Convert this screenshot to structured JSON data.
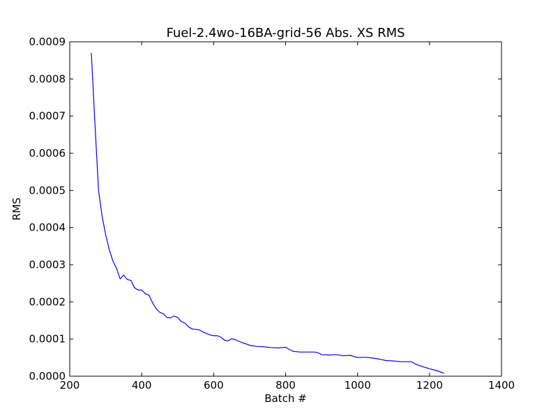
{
  "chart_data": {
    "type": "line",
    "title": "Fuel-2.4wo-16BA-grid-56 Abs. XS RMS",
    "xlabel": "Batch #",
    "ylabel": "RMS",
    "xlim": [
      200,
      1400
    ],
    "ylim": [
      0,
      0.0009
    ],
    "grid": false,
    "line_color": "#0000ff",
    "x_ticks": [
      "200",
      "400",
      "600",
      "800",
      "1000",
      "1200",
      "1400"
    ],
    "y_ticks": [
      "0.0000",
      "0.0001",
      "0.0002",
      "0.0003",
      "0.0004",
      "0.0005",
      "0.0006",
      "0.0007",
      "0.0008",
      "0.0009"
    ],
    "series": [
      {
        "x": [
          260,
          270,
          280,
          290,
          300,
          310,
          320,
          330,
          340,
          350,
          360,
          370,
          380,
          390,
          400,
          410,
          420,
          430,
          440,
          450,
          460,
          470,
          480,
          490,
          500,
          510,
          520,
          530,
          540,
          560,
          570,
          580,
          590,
          600,
          610,
          620,
          630,
          640,
          650,
          660,
          670,
          680,
          690,
          700,
          720,
          740,
          760,
          780,
          800,
          810,
          820,
          840,
          860,
          880,
          890,
          900,
          920,
          940,
          960,
          980,
          1000,
          1020,
          1040,
          1060,
          1080,
          1100,
          1120,
          1140,
          1150,
          1160,
          1180,
          1200,
          1220,
          1240
        ],
        "y": [
          0.00087,
          0.00068,
          0.0005,
          0.00043,
          0.00038,
          0.00034,
          0.00031,
          0.00029,
          0.000262,
          0.000272,
          0.00026,
          0.000258,
          0.000238,
          0.000232,
          0.000232,
          0.000222,
          0.000218,
          0.000198,
          0.000182,
          0.000172,
          0.000168,
          0.000158,
          0.000157,
          0.000162,
          0.000158,
          0.000147,
          0.000143,
          0.000133,
          0.000127,
          0.000125,
          0.000119,
          0.000115,
          0.000111,
          0.000109,
          0.000109,
          0.000105,
          9.7e-05,
          9.5e-05,
          0.000101,
          9.8e-05,
          9.4e-05,
          9e-05,
          8.7e-05,
          8.3e-05,
          8e-05,
          7.9e-05,
          7.7e-05,
          7.6e-05,
          7.8e-05,
          7.2e-05,
          6.7e-05,
          6.5e-05,
          6.5e-05,
          6.5e-05,
          6.3e-05,
          5.8e-05,
          5.7e-05,
          5.8e-05,
          5.5e-05,
          5.6e-05,
          5e-05,
          5.1e-05,
          4.9e-05,
          4.6e-05,
          4.2e-05,
          4.1e-05,
          3.9e-05,
          3.9e-05,
          3.9e-05,
          3.3e-05,
          2.6e-05,
          2e-05,
          1.5e-05,
          8e-06
        ]
      }
    ]
  }
}
